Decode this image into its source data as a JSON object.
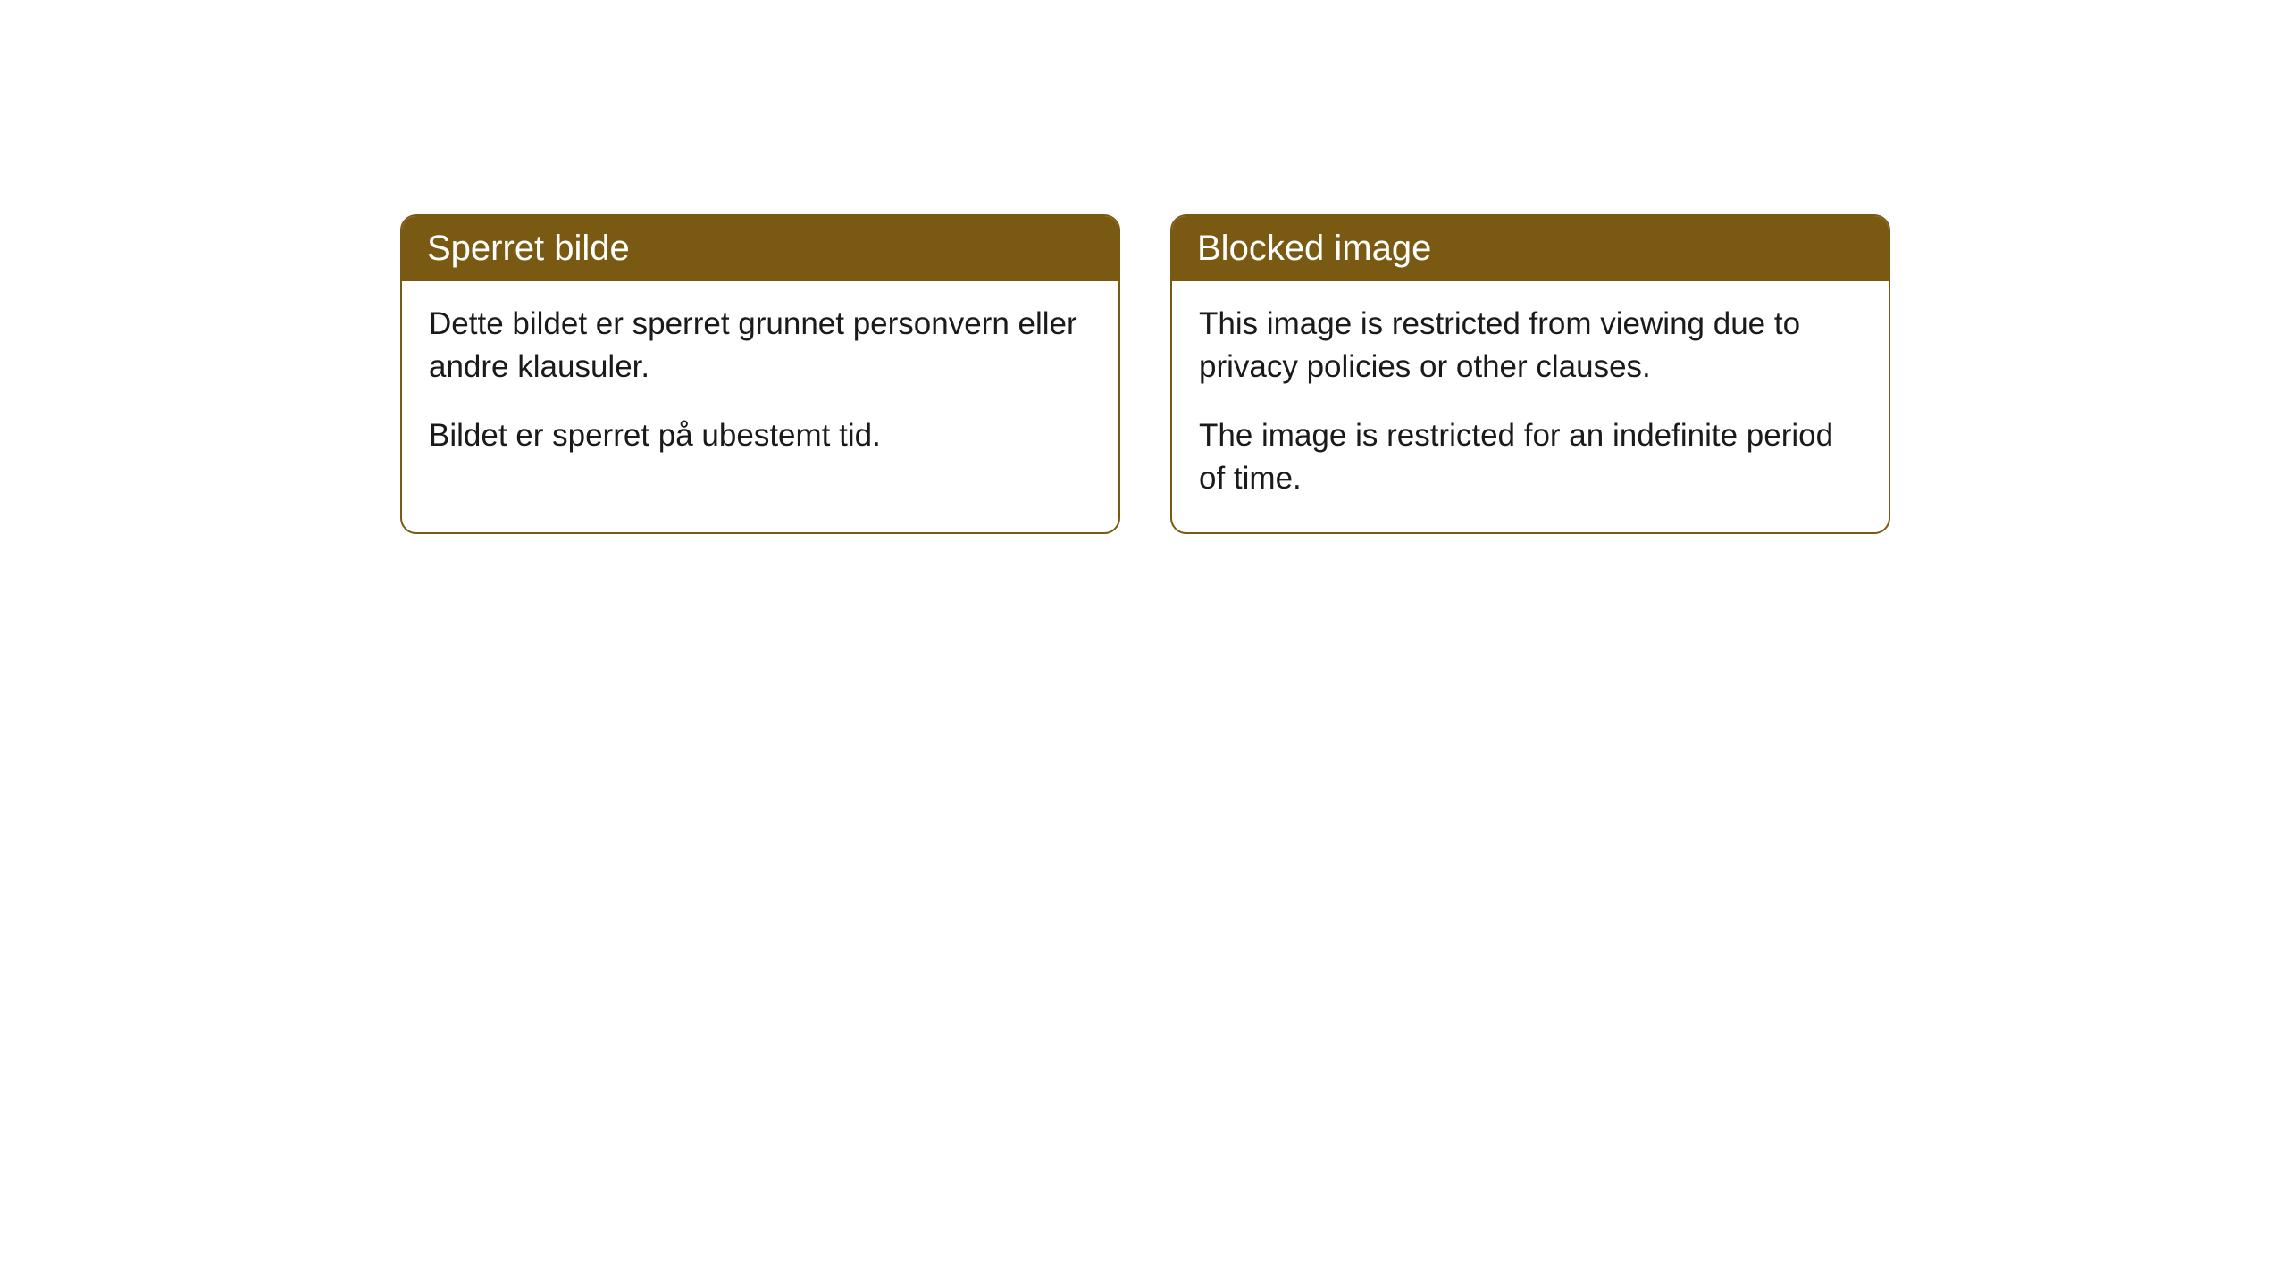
{
  "cards": [
    {
      "title": "Sperret bilde",
      "paragraph1": "Dette bildet er sperret grunnet personvern eller andre klausuler.",
      "paragraph2": "Bildet er sperret på ubestemt tid."
    },
    {
      "title": "Blocked image",
      "paragraph1": "This image is restricted from viewing due to privacy policies or other clauses.",
      "paragraph2": "The image is restricted for an indefinite period of time."
    }
  ],
  "styling": {
    "header_background": "#7a5a12",
    "header_text_color": "#ffffff",
    "border_color": "#7a5a12",
    "body_background": "#ffffff",
    "body_text_color": "#1a1a1a",
    "border_radius": 18,
    "title_fontsize": 40,
    "body_fontsize": 35
  }
}
